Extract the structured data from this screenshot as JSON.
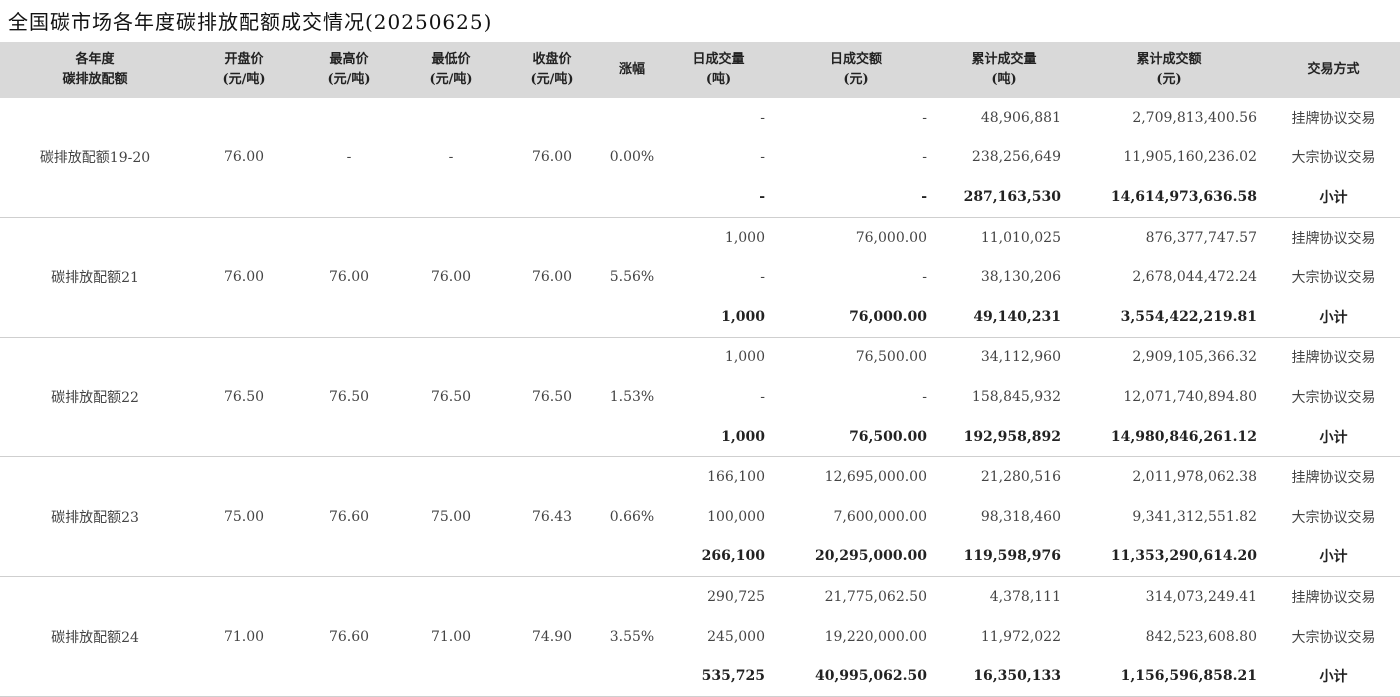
{
  "title": "全国碳市场各年度碳排放配额成交情况(20250625)",
  "headers": [
    {
      "l1": "各年度",
      "l2": "碳排放配额"
    },
    {
      "l1": "开盘价",
      "l2": "(元/吨)"
    },
    {
      "l1": "最高价",
      "l2": "(元/吨)"
    },
    {
      "l1": "最低价",
      "l2": "(元/吨)"
    },
    {
      "l1": "收盘价",
      "l2": "(元/吨)"
    },
    {
      "l1": "涨幅",
      "l2": ""
    },
    {
      "l1": "日成交量",
      "l2": "(吨)"
    },
    {
      "l1": "日成交额",
      "l2": "(元)"
    },
    {
      "l1": "累计成交量",
      "l2": "(吨)"
    },
    {
      "l1": "累计成交额",
      "l2": "(元)"
    },
    {
      "l1": "交易方式",
      "l2": ""
    }
  ],
  "groups": [
    {
      "name": "碳排放配额19-20",
      "open": "76.00",
      "high": "-",
      "low": "-",
      "close": "76.00",
      "change": "0.00%",
      "rows": [
        {
          "vol": "-",
          "amt": "-",
          "cum_vol": "48,906,881",
          "cum_amt": "2,709,813,400.56",
          "method": "挂牌协议交易"
        },
        {
          "vol": "-",
          "amt": "-",
          "cum_vol": "238,256,649",
          "cum_amt": "11,905,160,236.02",
          "method": "大宗协议交易"
        },
        {
          "vol": "-",
          "amt": "-",
          "cum_vol": "287,163,530",
          "cum_amt": "14,614,973,636.58",
          "method": "小计"
        }
      ]
    },
    {
      "name": "碳排放配额21",
      "open": "76.00",
      "high": "76.00",
      "low": "76.00",
      "close": "76.00",
      "change": "5.56%",
      "rows": [
        {
          "vol": "1,000",
          "amt": "76,000.00",
          "cum_vol": "11,010,025",
          "cum_amt": "876,377,747.57",
          "method": "挂牌协议交易"
        },
        {
          "vol": "-",
          "amt": "-",
          "cum_vol": "38,130,206",
          "cum_amt": "2,678,044,472.24",
          "method": "大宗协议交易"
        },
        {
          "vol": "1,000",
          "amt": "76,000.00",
          "cum_vol": "49,140,231",
          "cum_amt": "3,554,422,219.81",
          "method": "小计"
        }
      ]
    },
    {
      "name": "碳排放配额22",
      "open": "76.50",
      "high": "76.50",
      "low": "76.50",
      "close": "76.50",
      "change": "1.53%",
      "rows": [
        {
          "vol": "1,000",
          "amt": "76,500.00",
          "cum_vol": "34,112,960",
          "cum_amt": "2,909,105,366.32",
          "method": "挂牌协议交易"
        },
        {
          "vol": "-",
          "amt": "-",
          "cum_vol": "158,845,932",
          "cum_amt": "12,071,740,894.80",
          "method": "大宗协议交易"
        },
        {
          "vol": "1,000",
          "amt": "76,500.00",
          "cum_vol": "192,958,892",
          "cum_amt": "14,980,846,261.12",
          "method": "小计"
        }
      ]
    },
    {
      "name": "碳排放配额23",
      "open": "75.00",
      "high": "76.60",
      "low": "75.00",
      "close": "76.43",
      "change": "0.66%",
      "rows": [
        {
          "vol": "166,100",
          "amt": "12,695,000.00",
          "cum_vol": "21,280,516",
          "cum_amt": "2,011,978,062.38",
          "method": "挂牌协议交易"
        },
        {
          "vol": "100,000",
          "amt": "7,600,000.00",
          "cum_vol": "98,318,460",
          "cum_amt": "9,341,312,551.82",
          "method": "大宗协议交易"
        },
        {
          "vol": "266,100",
          "amt": "20,295,000.00",
          "cum_vol": "119,598,976",
          "cum_amt": "11,353,290,614.20",
          "method": "小计"
        }
      ]
    },
    {
      "name": "碳排放配额24",
      "open": "71.00",
      "high": "76.60",
      "low": "71.00",
      "close": "74.90",
      "change": "3.55%",
      "rows": [
        {
          "vol": "290,725",
          "amt": "21,775,062.50",
          "cum_vol": "4,378,111",
          "cum_amt": "314,073,249.41",
          "method": "挂牌协议交易"
        },
        {
          "vol": "245,000",
          "amt": "19,220,000.00",
          "cum_vol": "11,972,022",
          "cum_amt": "842,523,608.80",
          "method": "大宗协议交易"
        },
        {
          "vol": "535,725",
          "amt": "40,995,062.50",
          "cum_vol": "16,350,133",
          "cum_amt": "1,156,596,858.21",
          "method": "小计"
        }
      ]
    }
  ]
}
